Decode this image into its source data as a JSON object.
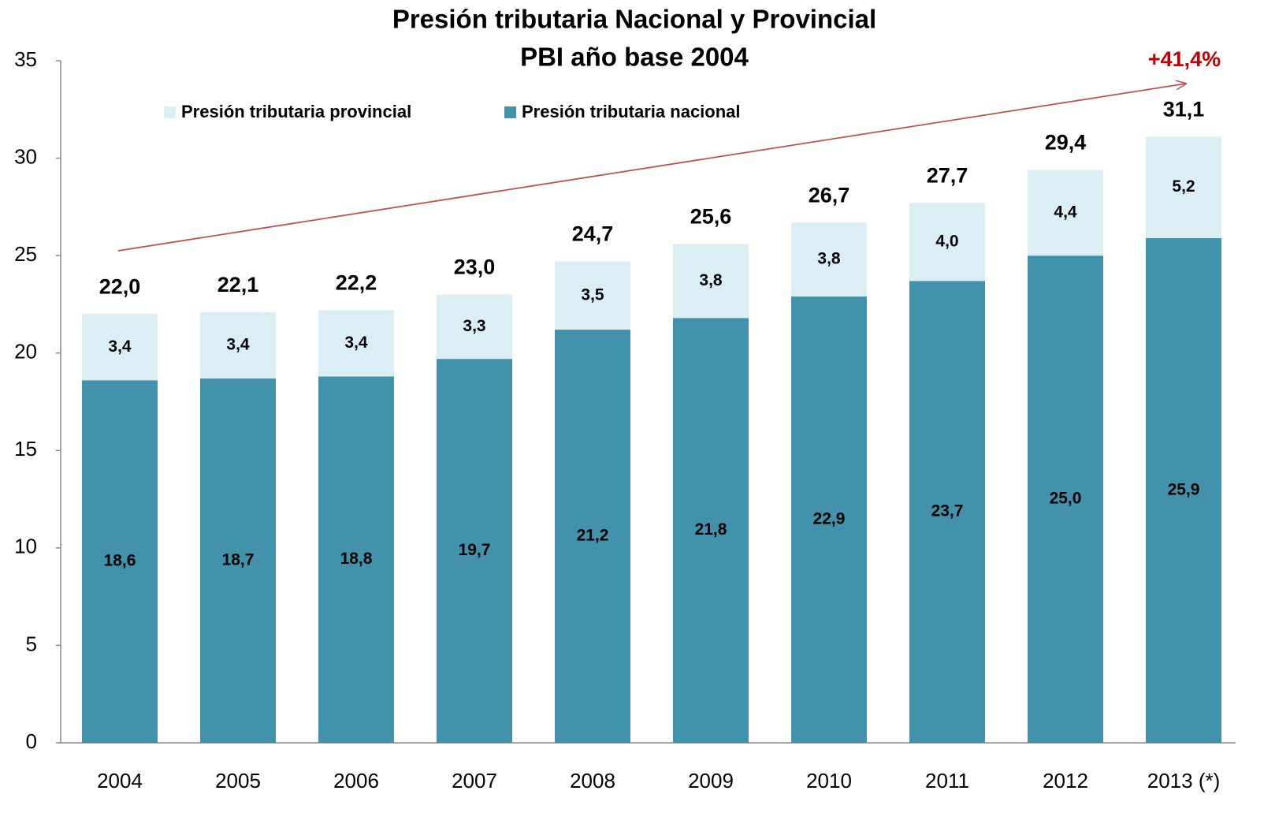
{
  "chart_data": {
    "type": "stacked_bar",
    "title": "Presión tributaria Nacional y Provincial",
    "subtitle": "PBI año base 2004",
    "annotation": "+41,4%",
    "categories": [
      "2004",
      "2005",
      "2006",
      "2007",
      "2008",
      "2009",
      "2010",
      "2011",
      "2012",
      "2013 (*)"
    ],
    "series": [
      {
        "name": "Presión tributaria nacional",
        "color": "#4292ac",
        "values": [
          18.6,
          18.7,
          18.8,
          19.7,
          21.2,
          21.8,
          22.9,
          23.7,
          25.0,
          25.9
        ],
        "value_labels": [
          "18,6",
          "18,7",
          "18,8",
          "19,7",
          "21,2",
          "21,8",
          "22,9",
          "23,7",
          "25,0",
          "25,9"
        ]
      },
      {
        "name": "Presión tributaria provincial",
        "color": "#dbeef4",
        "values": [
          3.4,
          3.4,
          3.4,
          3.3,
          3.5,
          3.8,
          3.8,
          4.0,
          4.4,
          5.2
        ],
        "value_labels": [
          "3,4",
          "3,4",
          "3,4",
          "3,3",
          "3,5",
          "3,8",
          "3,8",
          "4,0",
          "4,4",
          "5,2"
        ]
      }
    ],
    "totals": [
      22.0,
      22.1,
      22.2,
      23.0,
      24.7,
      25.6,
      26.7,
      27.7,
      29.4,
      31.1
    ],
    "total_labels": [
      "22,0",
      "22,1",
      "22,2",
      "23,0",
      "24,7",
      "25,6",
      "26,7",
      "27,7",
      "29,4",
      "31,1"
    ],
    "ylim": [
      0,
      35
    ],
    "yticks": [
      0,
      5,
      10,
      15,
      20,
      25,
      30,
      35
    ],
    "grid": false
  }
}
